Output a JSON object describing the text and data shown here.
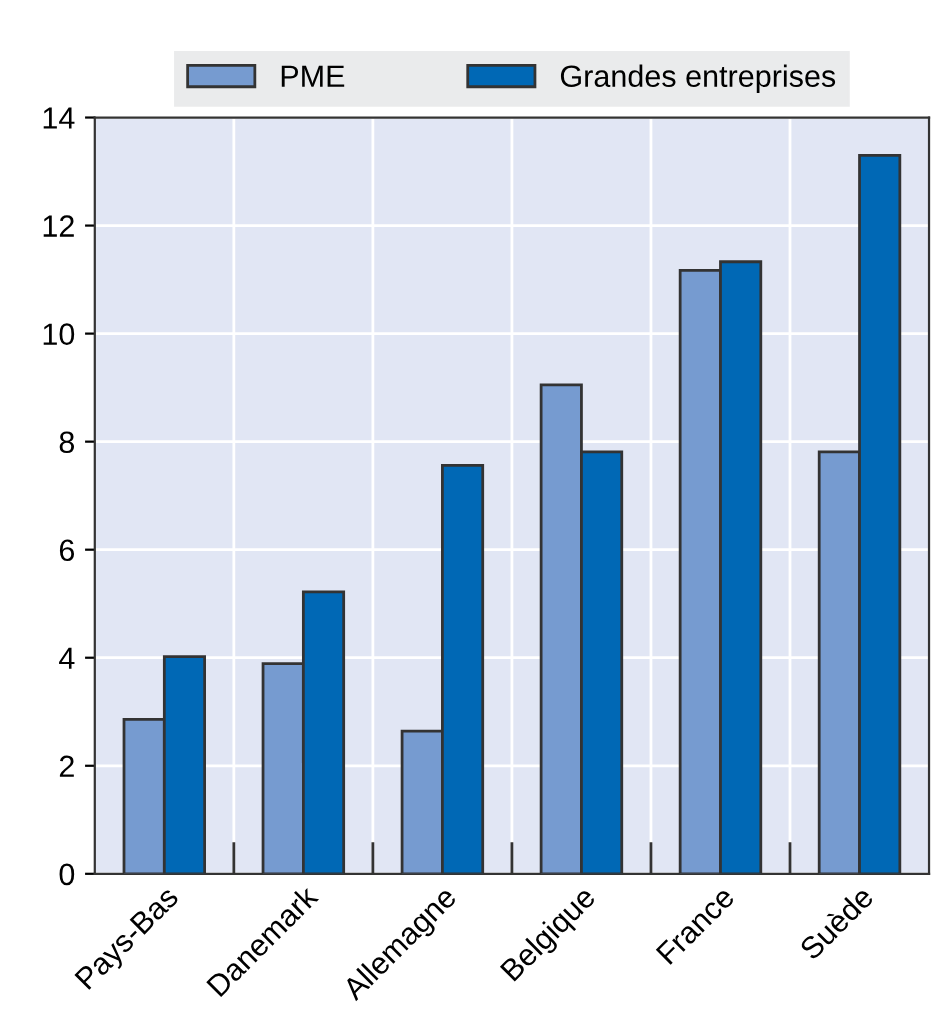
{
  "chart_data": {
    "type": "bar",
    "categories": [
      "Pays-Bas",
      "Danemark",
      "Allemagne",
      "Belgique",
      "France",
      "Suède"
    ],
    "series": [
      {
        "name": "PME",
        "color": "#769bd0",
        "values": [
          2.86,
          3.89,
          2.64,
          9.05,
          11.17,
          7.81
        ]
      },
      {
        "name": "Grandes entreprises",
        "color": "#0068b5",
        "values": [
          4.02,
          5.22,
          7.56,
          7.81,
          11.33,
          13.3
        ]
      }
    ],
    "ylim": [
      0,
      14
    ],
    "yticks": [
      0,
      2,
      4,
      6,
      8,
      10,
      12,
      14
    ],
    "grid": true,
    "legend": "top"
  }
}
